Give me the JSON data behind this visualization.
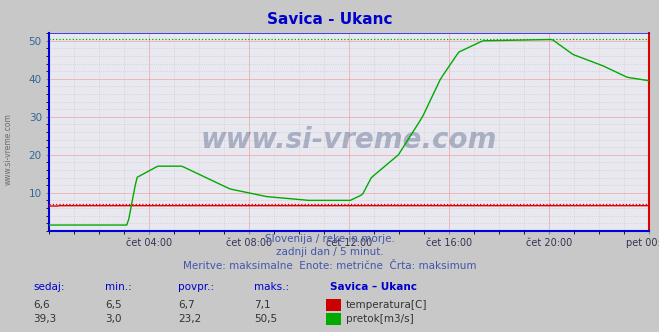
{
  "title": "Savica - Ukanc",
  "title_color": "#0000cc",
  "bg_color": "#c8c8c8",
  "plot_bg_color": "#e8e8f0",
  "xlabel_ticks": [
    "čet 04:00",
    "čet 08:00",
    "čet 12:00",
    "čet 16:00",
    "čet 20:00",
    "pet 00:00"
  ],
  "ylim": [
    0,
    52
  ],
  "yticks": [
    10,
    20,
    30,
    40,
    50
  ],
  "temp_color": "#dd0000",
  "flow_color": "#00aa00",
  "temp_max_line": 7.1,
  "flow_max_line": 50.5,
  "subtitle_lines": [
    "Slovenija / reke in morje.",
    "zadnji dan / 5 minut.",
    "Meritve: maksimalne  Enote: metrične  Črta: maksimum"
  ],
  "subtitle_color": "#4455aa",
  "table_header": [
    "sedaj:",
    "min.:",
    "povpr.:",
    "maks.:",
    "Savica – Ukanc"
  ],
  "table_color": "#0000cc",
  "table_rows": [
    [
      "6,6",
      "6,5",
      "6,7",
      "7,1"
    ],
    [
      "39,3",
      "3,0",
      "23,2",
      "50,5"
    ]
  ],
  "table_labels": [
    "temperatura[C]",
    "pretok[m3/s]"
  ],
  "table_label_colors": [
    "#cc0000",
    "#00aa00"
  ],
  "watermark": "www.si-vreme.com",
  "watermark_color": "#1a3060",
  "watermark_alpha": 0.3,
  "left_label": "www.si-vreme.com",
  "grid_color_major": "#ee9999",
  "grid_color_minor": "#ddbbbb",
  "border_color_left": "#0000dd",
  "border_color_bottom": "#0000dd",
  "border_color_right": "#dd0000",
  "border_color_top": "#0000dd",
  "axis_bottom_color": "#0000cc"
}
